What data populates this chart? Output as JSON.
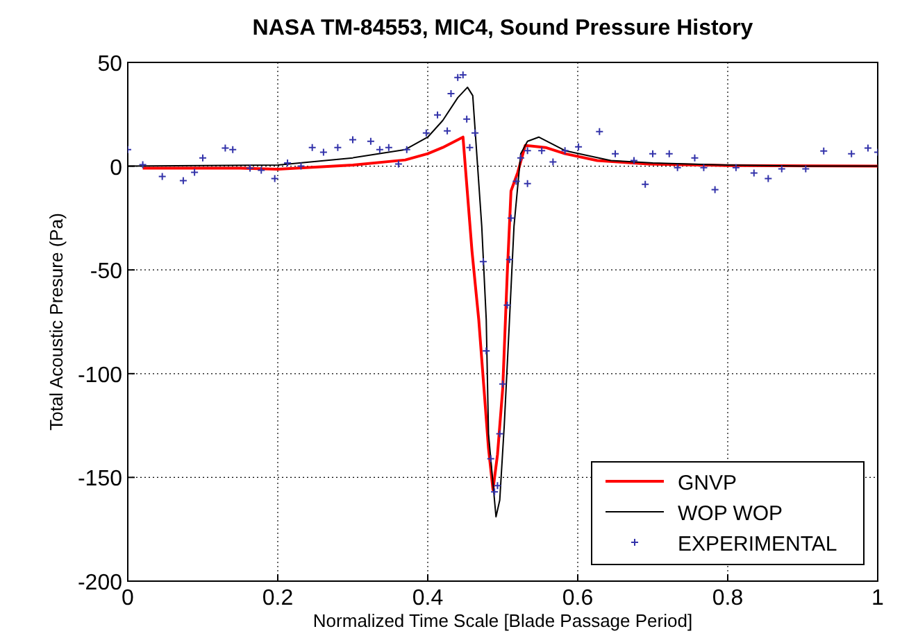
{
  "chart_data": {
    "type": "line",
    "title": "NASA TM-84553, MIC4, Sound Pressure History",
    "xlabel": "Normalized Time Scale [Blade Passage Period]",
    "ylabel": "Total Acoustic Presure (Pa)",
    "xlim": [
      0,
      1
    ],
    "xticks": [
      0,
      0.2,
      0.4,
      0.6,
      0.8,
      1
    ],
    "ylim": [
      -200,
      50
    ],
    "yticks": [
      -200,
      -150,
      -100,
      -50,
      0,
      50
    ],
    "grid": true,
    "legend": "bottom right",
    "series": [
      {
        "name": "GNVP",
        "color": "#ff0000",
        "x": [
          0.02,
          0.15,
          0.2,
          0.3,
          0.37,
          0.4,
          0.42,
          0.447,
          0.459,
          0.468,
          0.481,
          0.487,
          0.493,
          0.5,
          0.506,
          0.511,
          0.52,
          0.53,
          0.557,
          0.583,
          0.626,
          0.694,
          0.8,
          1
        ],
        "values": [
          -1,
          -1,
          -1.5,
          0.5,
          3,
          6,
          9,
          14,
          -41,
          -74,
          -136,
          -156,
          -139,
          -107,
          -52,
          -12,
          -3,
          10,
          9,
          6,
          2.7,
          1,
          0.3,
          0
        ]
      },
      {
        "name": "WOP WOP",
        "color": "#000000",
        "x": [
          0,
          0.2,
          0.3,
          0.37,
          0.4,
          0.42,
          0.44,
          0.453,
          0.46,
          0.472,
          0.478,
          0.481,
          0.491,
          0.496,
          0.502,
          0.509,
          0.515,
          0.524,
          0.533,
          0.548,
          0.583,
          0.644,
          0.7,
          0.8,
          0.9,
          1
        ],
        "values": [
          0,
          0.5,
          4,
          8,
          14,
          22,
          33,
          38,
          34,
          -29,
          -74,
          -129,
          -169,
          -161,
          -125,
          -74,
          -29,
          6,
          12,
          14,
          7.5,
          2.7,
          1.5,
          0.5,
          0,
          0
        ]
      },
      {
        "name": "EXPERIMENTAL",
        "color": "#3333aa",
        "type": "scatter",
        "marker": "cross",
        "x": [
          0,
          0.02,
          0.046,
          0.074,
          0.089,
          0.1,
          0.13,
          0.14,
          0.163,
          0.178,
          0.196,
          0.213,
          0.231,
          0.246,
          0.261,
          0.28,
          0.3,
          0.324,
          0.336,
          0.348,
          0.361,
          0.372,
          0.398,
          0.413,
          0.426,
          0.431,
          0.44,
          0.447,
          0.452,
          0.456,
          0.463,
          0.474,
          0.478,
          0.484,
          0.489,
          0.493,
          0.496,
          0.5,
          0.506,
          0.509,
          0.511,
          0.518,
          0.533,
          0.524,
          0.533,
          0.552,
          0.567,
          0.583,
          0.601,
          0.629,
          0.65,
          0.675,
          0.69,
          0.7,
          0.722,
          0.733,
          0.756,
          0.768,
          0.783,
          0.811,
          0.835,
          0.854,
          0.872,
          0.904,
          0.928,
          0.965,
          0.987,
          1
        ],
        "values": [
          8,
          0.7,
          -5,
          -7,
          -3,
          4,
          8.7,
          8,
          -1,
          -2,
          -6,
          1.5,
          0,
          9,
          6.7,
          9,
          12.7,
          12,
          8,
          9,
          1,
          8,
          16,
          24.7,
          17,
          35,
          42.7,
          44,
          22.7,
          9,
          16,
          -46,
          -89,
          -141,
          -157,
          -154,
          -129,
          -105,
          -67,
          -45,
          -25,
          -7.3,
          -8.4,
          4,
          7.5,
          7.5,
          2,
          7.5,
          9.3,
          16.7,
          6,
          2.7,
          -8.7,
          6,
          6,
          -0.7,
          4,
          -0.7,
          -11.3,
          -0.7,
          -3.3,
          -6,
          -1.3,
          -1.3,
          7.3,
          6,
          8.7,
          6.7
        ]
      }
    ]
  }
}
